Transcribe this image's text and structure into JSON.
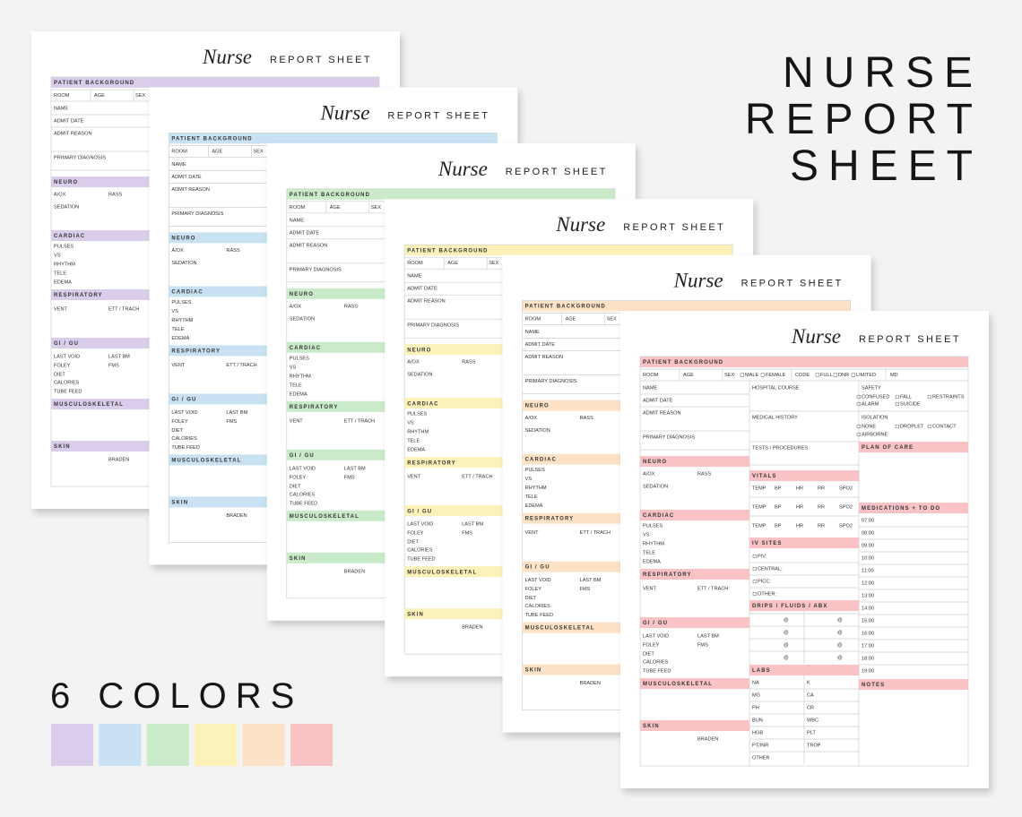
{
  "heading": [
    "NURSE",
    "REPORT",
    "SHEET"
  ],
  "colors_label": "6 COLORS",
  "colors": [
    "#d9cdeb",
    "#c8e2f3",
    "#c9ebc9",
    "#fcf2b9",
    "#fde2c6",
    "#f9c3c6"
  ],
  "sheet": {
    "script": "Nurse",
    "title": "REPORT SHEET",
    "patient_background": "PATIENT BACKGROUND",
    "id_row": [
      "ROOM",
      "AGE",
      "SEX",
      "MALE",
      "FEMALE",
      "CODE",
      "FULL",
      "DNR",
      "LIMITED",
      "MD"
    ],
    "left": [
      {
        "rows": [
          [
            "NAME"
          ],
          [
            "ADMIT DATE"
          ],
          [
            "ADMIT REASON"
          ],
          [
            "PRIMARY DIAGNOSIS"
          ]
        ]
      },
      {
        "header": "NEURO",
        "rows": [
          [
            "A/OX",
            "RASS"
          ],
          [
            "SEDATION"
          ]
        ]
      },
      {
        "header": "CARDIAC",
        "rows": [
          [
            "PULSES"
          ],
          [
            "VS"
          ],
          [
            "RHYTHM"
          ],
          [
            "TELE"
          ],
          [
            "EDEMA"
          ]
        ]
      },
      {
        "header": "RESPIRATORY",
        "rows": [
          [
            "VENT",
            "ETT / TRACH"
          ]
        ]
      },
      {
        "header": "GI / GU",
        "rows": [
          [
            "LAST VOID",
            "LAST BM"
          ],
          [
            "FOLEY",
            "FMS"
          ],
          [
            "DIET"
          ],
          [
            "CALORIES"
          ],
          [
            "TUBE FEED"
          ]
        ]
      },
      {
        "header": "MUSCULOSKELETAL",
        "rows": []
      },
      {
        "header": "SKIN",
        "rows": [
          [
            "BRADEN"
          ]
        ]
      }
    ],
    "middle": [
      {
        "rows": [
          [
            "HOSPITAL COURSE"
          ],
          [
            "MEDICAL HISTORY"
          ],
          [
            "TESTS / PROCEDURES"
          ]
        ]
      },
      {
        "header": "VITALS",
        "rows": [
          [
            "TEMP",
            "BP",
            "HR",
            "RR",
            "SPO2"
          ],
          [
            "TEMP",
            "BP",
            "HR",
            "RR",
            "SPO2"
          ],
          [
            "TEMP",
            "BP",
            "HR",
            "RR",
            "SPO2"
          ]
        ]
      },
      {
        "header": "IV SITES",
        "rows": [
          [
            "PIV:"
          ],
          [
            "CENTRAL:"
          ],
          [
            "PICC:"
          ],
          [
            "OTHER:"
          ]
        ]
      },
      {
        "header": "DRIPS / FLUIDS / ABX",
        "rows": [
          [
            "@",
            "@"
          ],
          [
            "@",
            "@"
          ],
          [
            "@",
            "@"
          ],
          [
            "@",
            "@"
          ]
        ]
      },
      {
        "header": "LABS",
        "rows": [
          [
            "NA",
            "K"
          ],
          [
            "MG",
            "CA"
          ],
          [
            "PH",
            "CR"
          ],
          [
            "BUN",
            "WBC"
          ],
          [
            "HGB",
            "PLT"
          ],
          [
            "PT/INR",
            "TROP"
          ],
          [
            "OTHER"
          ]
        ]
      }
    ],
    "right": [
      {
        "rows": [
          [
            "SAFETY"
          ],
          [
            "CONFUSED",
            "FALL",
            "RESTRAINTS"
          ],
          [
            "ALARM",
            "SUICIDE"
          ]
        ]
      },
      {
        "rows": [
          [
            "ISOLATION"
          ],
          [
            "NONE",
            "DROPLET",
            "CONTACT"
          ],
          [
            "AIRBORNE"
          ]
        ]
      },
      {
        "header": "PLAN OF CARE",
        "rows": []
      },
      {
        "header": "MEDICATIONS + TO DO",
        "rows": [
          [
            "07:00"
          ],
          [
            "08:00"
          ],
          [
            "09:00"
          ],
          [
            "10:00"
          ],
          [
            "11:00"
          ],
          [
            "12:00"
          ],
          [
            "13:00"
          ],
          [
            "14:00"
          ],
          [
            "15:00"
          ],
          [
            "16:00"
          ],
          [
            "17:00"
          ],
          [
            "18:00"
          ],
          [
            "19:00"
          ]
        ]
      },
      {
        "header": "NOTES",
        "rows": []
      }
    ]
  }
}
